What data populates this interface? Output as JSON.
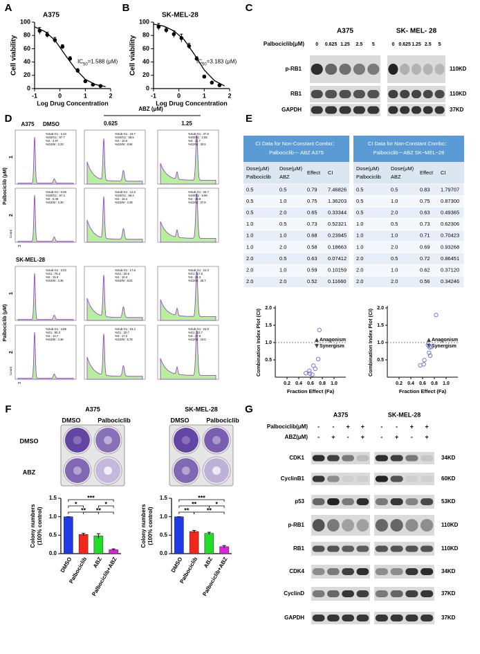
{
  "panel_a": {
    "type": "dose-response",
    "letter": "A",
    "title": "A375",
    "ylabel": "Cell viability",
    "xlabel": "Log Drug Concentration",
    "ic50": {
      "prefix": "IC",
      "sub": "50",
      "text": "=1.588  (μM)"
    },
    "x": [
      -0.8,
      -0.5,
      -0.2,
      0.1,
      0.4,
      0.7,
      1.0,
      1.3,
      1.6
    ],
    "values": [
      87,
      81,
      73,
      63,
      45,
      27,
      11,
      6,
      4
    ],
    "errors": [
      5,
      4,
      4,
      3,
      3,
      3,
      2,
      1,
      1
    ],
    "fit": {
      "x": [
        -1,
        -0.6,
        -0.2,
        0.2,
        0.6,
        1.0,
        1.4,
        1.8
      ],
      "y": [
        93,
        86,
        73,
        51,
        30,
        14,
        6,
        3
      ]
    },
    "xlim": [
      -1,
      2
    ],
    "ylim": [
      0,
      100
    ],
    "xticks": [
      -1,
      0,
      1,
      2
    ],
    "yticks": [
      0,
      20,
      40,
      60,
      80,
      100
    ]
  },
  "panel_b": {
    "type": "dose-response",
    "letter": "B",
    "title": "SK-MEL-28",
    "ylabel": "Cell  viability",
    "xlabel": "Log Drug Concentration",
    "ic50": {
      "prefix": "IC",
      "sub": "50",
      "text": "=3.183  (μM)"
    },
    "x": [
      -0.8,
      -0.5,
      -0.2,
      0.1,
      0.4,
      0.7,
      1.0,
      1.3,
      1.6
    ],
    "values": [
      93,
      88,
      82,
      76,
      64,
      45,
      18,
      9,
      5
    ],
    "errors": [
      5,
      4,
      5,
      6,
      4,
      3,
      2,
      1,
      1
    ],
    "fit": {
      "x": [
        -1,
        -0.6,
        -0.2,
        0.2,
        0.6,
        1.0,
        1.4,
        1.8
      ],
      "y": [
        97,
        94,
        87,
        74,
        52,
        28,
        12,
        4
      ]
    },
    "xlim": [
      -1,
      2
    ],
    "ylim": [
      0,
      100
    ],
    "xticks": [
      -1,
      0,
      1,
      2
    ],
    "yticks": [
      0,
      20,
      40,
      60,
      80,
      100
    ]
  },
  "panel_c": {
    "letter": "C",
    "treatment_label": "Palbociclib(μM)",
    "groups": [
      {
        "name": "A375",
        "doses": [
          "0",
          "0.625",
          "1.25",
          "2.5",
          "5"
        ]
      },
      {
        "name": "SK- MEL- 28",
        "doses": [
          "0",
          "0.625",
          "1.25",
          "2.5",
          "5"
        ]
      }
    ],
    "rows": [
      {
        "label": "p-RB1",
        "size": "110KD"
      },
      {
        "label": "RB1",
        "size": "110KD"
      },
      {
        "label": "GAPDH",
        "size": "37KD"
      }
    ]
  },
  "panel_d": {
    "letter": "D",
    "cell_lines": [
      "A375",
      "SK-MEL-28"
    ],
    "control_label": "DMSO",
    "abz_label": "ABZ  (μM)",
    "abz_doses": [
      "0.625",
      "1.25"
    ],
    "palbociclib_label": "Palbociclib (μM)",
    "palbociclib_doses": [
      "1",
      "2"
    ],
    "count_label": "Count",
    "pi_label": "PI",
    "stats": [
      [
        [
          "%Sub-G1 : 3.43",
          "%G0/G1 : 87.7",
          "%S : 4.87",
          "%G2/M : 3.23"
        ],
        [
          "%Sub-G1 : 19.7",
          "%G0/G1 : 58.5",
          "%S : 10.0",
          "%G2/M : 6.94"
        ],
        [
          "%Sub-G1 : 37.8",
          "%G0/G1 : 2.55",
          "%S : 11.7",
          "%G2/M : 30.5"
        ]
      ],
      [
        [
          "%Sub-G1 : 3.08",
          "%G0/G1 : 87.4",
          "%S : 6.49",
          "%G2/M : 3.30"
        ],
        [
          "%Sub-G1 : 12.5",
          "%G0/G1 : 59.4",
          "%S : 16.4",
          "%G2/M : 4.39"
        ],
        [
          "%Sub-G1 : 25.7",
          "%G0/G1 : 8.96",
          "%S : 10.9",
          "%G2/M : 37.8"
        ]
      ],
      [
        [
          "%Sub-G1 : 3.03",
          "%G1 : 78.4",
          "%S : 15.9",
          "%G2/M : 3.35"
        ],
        [
          "%Sub-G1 : 17.8",
          "%G1 : 20.5",
          "%S : 10.4",
          "%G2/M : 8.01"
        ],
        [
          "%Sub-G1 : 24.3",
          "%G1 : 17.5",
          "%S : 21.3",
          "%G2/M : 25.7"
        ]
      ],
      [
        [
          "%Sub-G1 : 4.89",
          "%G1 : 80.3",
          "%S : 10.7",
          "%G2/M : 3.38"
        ],
        [
          "%Sub-G1 : 15.4",
          "%G1 : 20.7",
          "%S : 17.2",
          "%G2/M : 5.78"
        ],
        [
          "%Sub-G1 : 24.9",
          "%G1 : 22.7",
          "%S : 17.8",
          "%G2/M : 23.0"
        ]
      ]
    ]
  },
  "panel_e": {
    "letter": "E",
    "tables": [
      {
        "title": [
          "CI Data for Non-Constant Combo：",
          "Palbociclib－ ABZ A375"
        ],
        "columns": [
          [
            "Dose(μM)",
            "Palbociclib"
          ],
          [
            "Dose(μM)",
            "ABZ"
          ],
          [
            "Effect"
          ],
          [
            "CI"
          ]
        ],
        "rows": [
          [
            "0.5",
            "0.5",
            "0.79",
            "7.46826"
          ],
          [
            "0.5",
            "1.0",
            "0.75",
            "1.36203"
          ],
          [
            "0.5",
            "2.0",
            "0.65",
            "0.33344"
          ],
          [
            "1.0",
            "0.5",
            "0.73",
            "0.52321"
          ],
          [
            "1.0",
            "1.0",
            "0.68",
            "0.23945"
          ],
          [
            "1.0",
            "2.0",
            "0.58",
            "0.18663"
          ],
          [
            "2.0",
            "0.5",
            "0.63",
            "0.07412"
          ],
          [
            "2.0",
            "1.0",
            "0.59",
            "0.10159"
          ],
          [
            "2.0",
            "2.0",
            "0.52",
            "0.11660"
          ]
        ]
      },
      {
        "title": [
          "CI Data for Non-Constant Combo：",
          "Palbociclib－ABZ SK−MEL−28"
        ],
        "columns": [
          [
            "Dose(μM)",
            "Palbociclib"
          ],
          [
            "Dose(μM)",
            "ABZ"
          ],
          [
            "Effect"
          ],
          [
            "CI"
          ]
        ],
        "rows": [
          [
            "0.5",
            "0.5",
            "0.83",
            "1.79707"
          ],
          [
            "0.5",
            "1.0",
            "0.75",
            "0.87300"
          ],
          [
            "0.5",
            "2.0",
            "0.63",
            "0.49365"
          ],
          [
            "1.0",
            "0.5",
            "0.73",
            "0.62306"
          ],
          [
            "1.0",
            "1.0",
            "0.71",
            "0.70423"
          ],
          [
            "1.0",
            "2.0",
            "0.69",
            "0.93268"
          ],
          [
            "2.0",
            "0.5",
            "0.72",
            "0.86451"
          ],
          [
            "2.0",
            "1.0",
            "0.62",
            "0.37120"
          ],
          [
            "2.0",
            "2.0",
            "0.56",
            "0.34246"
          ]
        ]
      }
    ],
    "plots": [
      {
        "type": "scatter",
        "ylabel": "Combination Index Plot (CI)",
        "xlabel": "Fraction Effect (Fa)",
        "threshold": 1,
        "antagonism_label": "Anagonism",
        "synergism_label": "Synergism",
        "color": "#6a6ae8",
        "xlim": [
          0,
          1.2
        ],
        "ylim": [
          0,
          2
        ],
        "xticks": [
          0.2,
          0.4,
          0.6,
          0.8,
          {
            "value": 1,
            "label": "1.0"
          }
        ],
        "yticks": [
          0.5,
          {
            "value": 1,
            "label": "1.0"
          },
          1.5,
          {
            "value": 2,
            "label": "2.0"
          }
        ]
      },
      {
        "type": "scatter",
        "ylabel": "Combination Index Plot (CI)",
        "xlabel": "Fraction Effect (Fa)",
        "threshold": 1,
        "antagonism_label": "Anagonism",
        "synergism_label": "Synergism",
        "color": "#6a6ae8",
        "xlim": [
          0,
          1.2
        ],
        "ylim": [
          0,
          2
        ],
        "xticks": [
          0.2,
          0.4,
          0.6,
          0.8,
          {
            "value": 1,
            "label": "1.0"
          }
        ],
        "yticks": [
          0.5,
          {
            "value": 1,
            "label": "1.0"
          },
          1.5,
          {
            "value": 2,
            "label": "2.0"
          }
        ]
      }
    ]
  },
  "panel_f": {
    "letter": "F",
    "groups": [
      "A375",
      "SK-MEL-28"
    ],
    "plate_columns": [
      "DMSO",
      "Palbociclib"
    ],
    "plate_rows": [
      "DMSO",
      "ABZ"
    ],
    "charts": [
      {
        "type": "bar",
        "ylabel": [
          "Colony numbers",
          "(100% control)"
        ],
        "categories": [
          "DMSO",
          "Palbociclib",
          "ABZ",
          "Palbociclib+ABZ"
        ],
        "values": [
          1.0,
          0.52,
          0.48,
          0.11
        ],
        "errors": [
          0,
          0.03,
          0.06,
          0.02
        ],
        "colors": [
          "#1d3be8",
          "#f3261b",
          "#22dc2a",
          "#dd22dd"
        ],
        "ylim": [
          0,
          1.5
        ],
        "yticks": [
          {
            "value": 0,
            "label": "0.0"
          },
          0.5,
          {
            "value": 1,
            "label": "1.0"
          },
          1.5
        ],
        "significance": [
          "***",
          "*",
          "*",
          "**",
          "**"
        ]
      },
      {
        "type": "bar",
        "ylabel": [
          "Colony numbers",
          "(100% control)"
        ],
        "categories": [
          "DMSO",
          "Palbociclib",
          "ABZ",
          "Palbociclib+ABZ"
        ],
        "values": [
          1.0,
          0.6,
          0.55,
          0.19
        ],
        "errors": [
          0,
          0.03,
          0.03,
          0.03
        ],
        "colors": [
          "#1d3be8",
          "#f3261b",
          "#22dc2a",
          "#dd22dd"
        ],
        "ylim": [
          0,
          1.5
        ],
        "yticks": [
          {
            "value": 0,
            "label": "0.0"
          },
          0.5,
          {
            "value": 1,
            "label": "1.0"
          },
          1.5
        ],
        "significance": [
          "***",
          "**",
          "*",
          "**",
          "**"
        ]
      }
    ]
  },
  "panel_g": {
    "letter": "G",
    "treatments": [
      "Palbociclib(μM)",
      "ABZ(μM)"
    ],
    "groups": [
      {
        "name": "A375",
        "signs": [
          [
            "-",
            "-",
            "+",
            "+"
          ],
          [
            "-",
            "+",
            "-",
            "+"
          ]
        ]
      },
      {
        "name": "SK-MEL-28",
        "signs": [
          [
            "-",
            "-",
            "+",
            "+"
          ],
          [
            "-",
            "+",
            "-",
            "+"
          ]
        ]
      }
    ],
    "rows": [
      {
        "label": "CDK1",
        "size": "34KD"
      },
      {
        "label": "CyclinB1",
        "size": "60KD"
      },
      {
        "label": "p53",
        "size": "53KD"
      },
      {
        "label": "p-RB1",
        "size": "110KD"
      },
      {
        "label": "RB1",
        "size": "110KD"
      },
      {
        "label": "CDK4",
        "size": "34KD"
      },
      {
        "label": "CyclinD",
        "size": "37KD"
      },
      {
        "label": "GAPDH",
        "size": "37KD"
      }
    ]
  }
}
